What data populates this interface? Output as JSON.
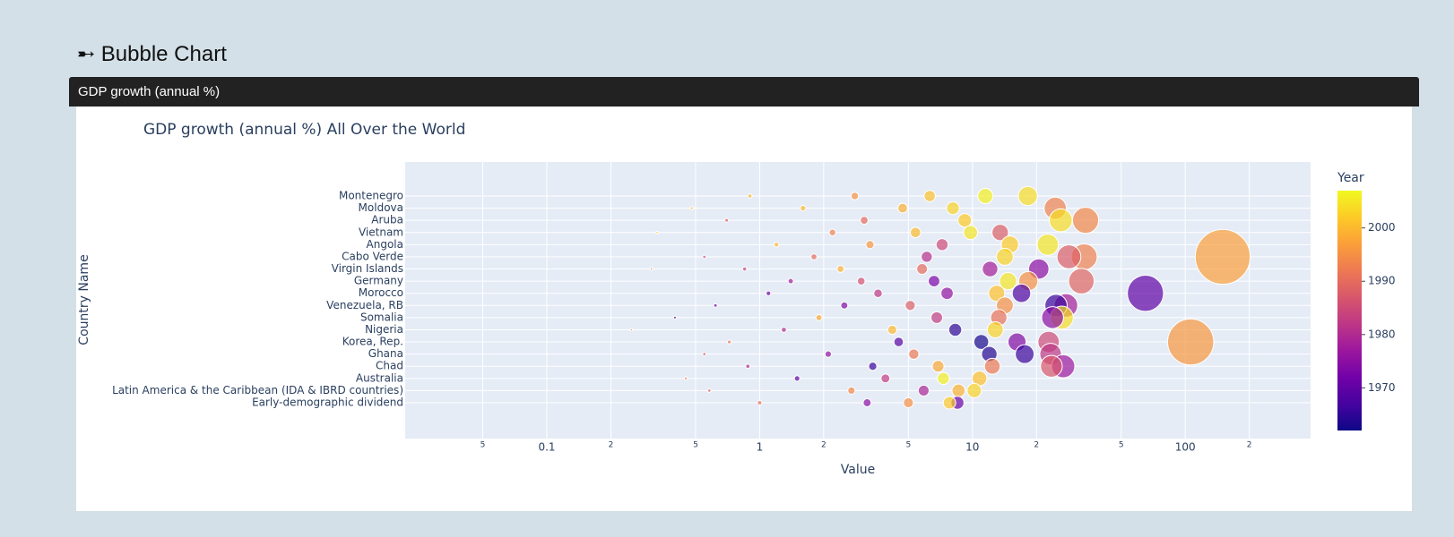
{
  "page": {
    "heading": "➸ Bubble Chart",
    "card_title": "GDP growth (annual %)"
  },
  "chart_data": {
    "type": "bubble",
    "title": "GDP growth (annual %) All Over the World",
    "x_label": "Value",
    "y_label": "Country Name",
    "log_x": true,
    "grid": true,
    "xlim": [
      0.0216,
      388
    ],
    "xticks": [
      {
        "value": 0.05,
        "label": "5"
      },
      0.1,
      {
        "value": 0.2,
        "label": "2"
      },
      {
        "value": 0.5,
        "label": "5"
      },
      1,
      {
        "value": 2,
        "label": "2"
      },
      {
        "value": 5,
        "label": "5"
      },
      10,
      {
        "value": 20,
        "label": "2"
      },
      {
        "value": 50,
        "label": "5"
      },
      100,
      {
        "value": 200,
        "label": "2"
      }
    ],
    "colorbar": {
      "title": "Year",
      "lim": [
        1962,
        2007
      ],
      "ticks": [
        1970,
        1980,
        1990,
        2000
      ],
      "colorscale": [
        "#0d0887",
        "#46039f",
        "#7201a8",
        "#9c179e",
        "#bd3786",
        "#d8576b",
        "#ed7953",
        "#fb9f3a",
        "#fdca26",
        "#f0f921"
      ]
    },
    "rows": [
      {
        "name": "Montenegro",
        "values": [
          18.2,
          11.5,
          6.3,
          2.8,
          0.9
        ],
        "years": [
          2004,
          2006,
          2001,
          1995,
          2000
        ]
      },
      {
        "name": "Moldova",
        "values": [
          24.5,
          8.1,
          4.7,
          1.6,
          0.48
        ],
        "years": [
          1993,
          2003,
          1999,
          2000,
          2001
        ]
      },
      {
        "name": "Aruba",
        "values": [
          34,
          26,
          9.2,
          3.1,
          0.7
        ],
        "years": [
          1994,
          2004,
          2002,
          1990,
          1988
        ]
      },
      {
        "name": "Vietnam",
        "values": [
          13.5,
          9.8,
          5.4,
          2.2,
          0.33
        ],
        "years": [
          1988,
          2005,
          2000,
          1993,
          2003
        ]
      },
      {
        "name": "Angola",
        "values": [
          22.6,
          15.0,
          7.2,
          3.3,
          1.2
        ],
        "years": [
          2005,
          2002,
          1985,
          1996,
          2000
        ]
      },
      {
        "name": "Cabo Verde",
        "values": [
          150,
          33.5,
          28.4,
          14.2,
          6.1,
          1.8,
          0.55
        ],
        "years": [
          1997,
          1993,
          1988,
          2003,
          1981,
          1990,
          1986
        ]
      },
      {
        "name": "Virgin Islands",
        "values": [
          20.5,
          12.1,
          5.8,
          2.4,
          0.85,
          0.31
        ],
        "years": [
          1975,
          1978,
          1990,
          1999,
          1984,
          1993
        ]
      },
      {
        "name": "Germany",
        "values": [
          32.5,
          18.3,
          14.7,
          6.6,
          3.0,
          1.4
        ],
        "years": [
          1989,
          1995,
          2005,
          1973,
          1986,
          1978
        ]
      },
      {
        "name": "Morocco",
        "values": [
          65,
          17.0,
          13.0,
          7.6,
          3.6,
          1.1
        ],
        "years": [
          1970,
          1968,
          2001,
          1976,
          1982,
          1972
        ]
      },
      {
        "name": "Venezuela, RB",
        "values": [
          27.5,
          24.7,
          14.2,
          5.1,
          2.5,
          0.62
        ],
        "years": [
          1978,
          1966,
          1995,
          1988,
          1974,
          1971
        ]
      },
      {
        "name": "Somalia",
        "values": [
          26.3,
          23.8,
          13.3,
          6.8,
          1.9,
          0.4
        ],
        "years": [
          2004,
          1975,
          1991,
          1983,
          1998,
          1968
        ]
      },
      {
        "name": "Nigeria",
        "values": [
          12.8,
          8.3,
          4.2,
          1.3,
          0.25
        ],
        "years": [
          2003,
          1965,
          2000,
          1980,
          1990
        ]
      },
      {
        "name": "Korea, Rep.",
        "values": [
          106,
          22.8,
          16.2,
          11.0,
          4.5,
          0.72
        ],
        "years": [
          1996,
          1985,
          1974,
          1963,
          1969,
          1992
        ]
      },
      {
        "name": "Ghana",
        "values": [
          23.3,
          17.6,
          12.0,
          5.3,
          2.1,
          0.55
        ],
        "years": [
          1982,
          1966,
          1964,
          1992,
          1976,
          1988
        ]
      },
      {
        "name": "Chad",
        "values": [
          26.7,
          23.5,
          12.4,
          6.9,
          3.4,
          0.88
        ],
        "years": [
          1977,
          1987,
          1992,
          1998,
          1966,
          1980
        ]
      },
      {
        "name": "Australia",
        "values": [
          10.8,
          7.3,
          3.9,
          1.5,
          0.45
        ],
        "years": [
          2001,
          2006,
          1983,
          1970,
          1993
        ]
      },
      {
        "name": "Latin America & the Caribbean (IDA & IBRD countries)",
        "values": [
          10.2,
          8.6,
          5.9,
          2.7,
          0.58
        ],
        "years": [
          2003,
          1999,
          1979,
          1994,
          1989
        ]
      },
      {
        "name": "Early-demographic dividend",
        "values": [
          8.5,
          7.8,
          5.0,
          3.2,
          1.0
        ],
        "years": [
          1971,
          2002,
          1995,
          1975,
          1991
        ]
      }
    ]
  }
}
